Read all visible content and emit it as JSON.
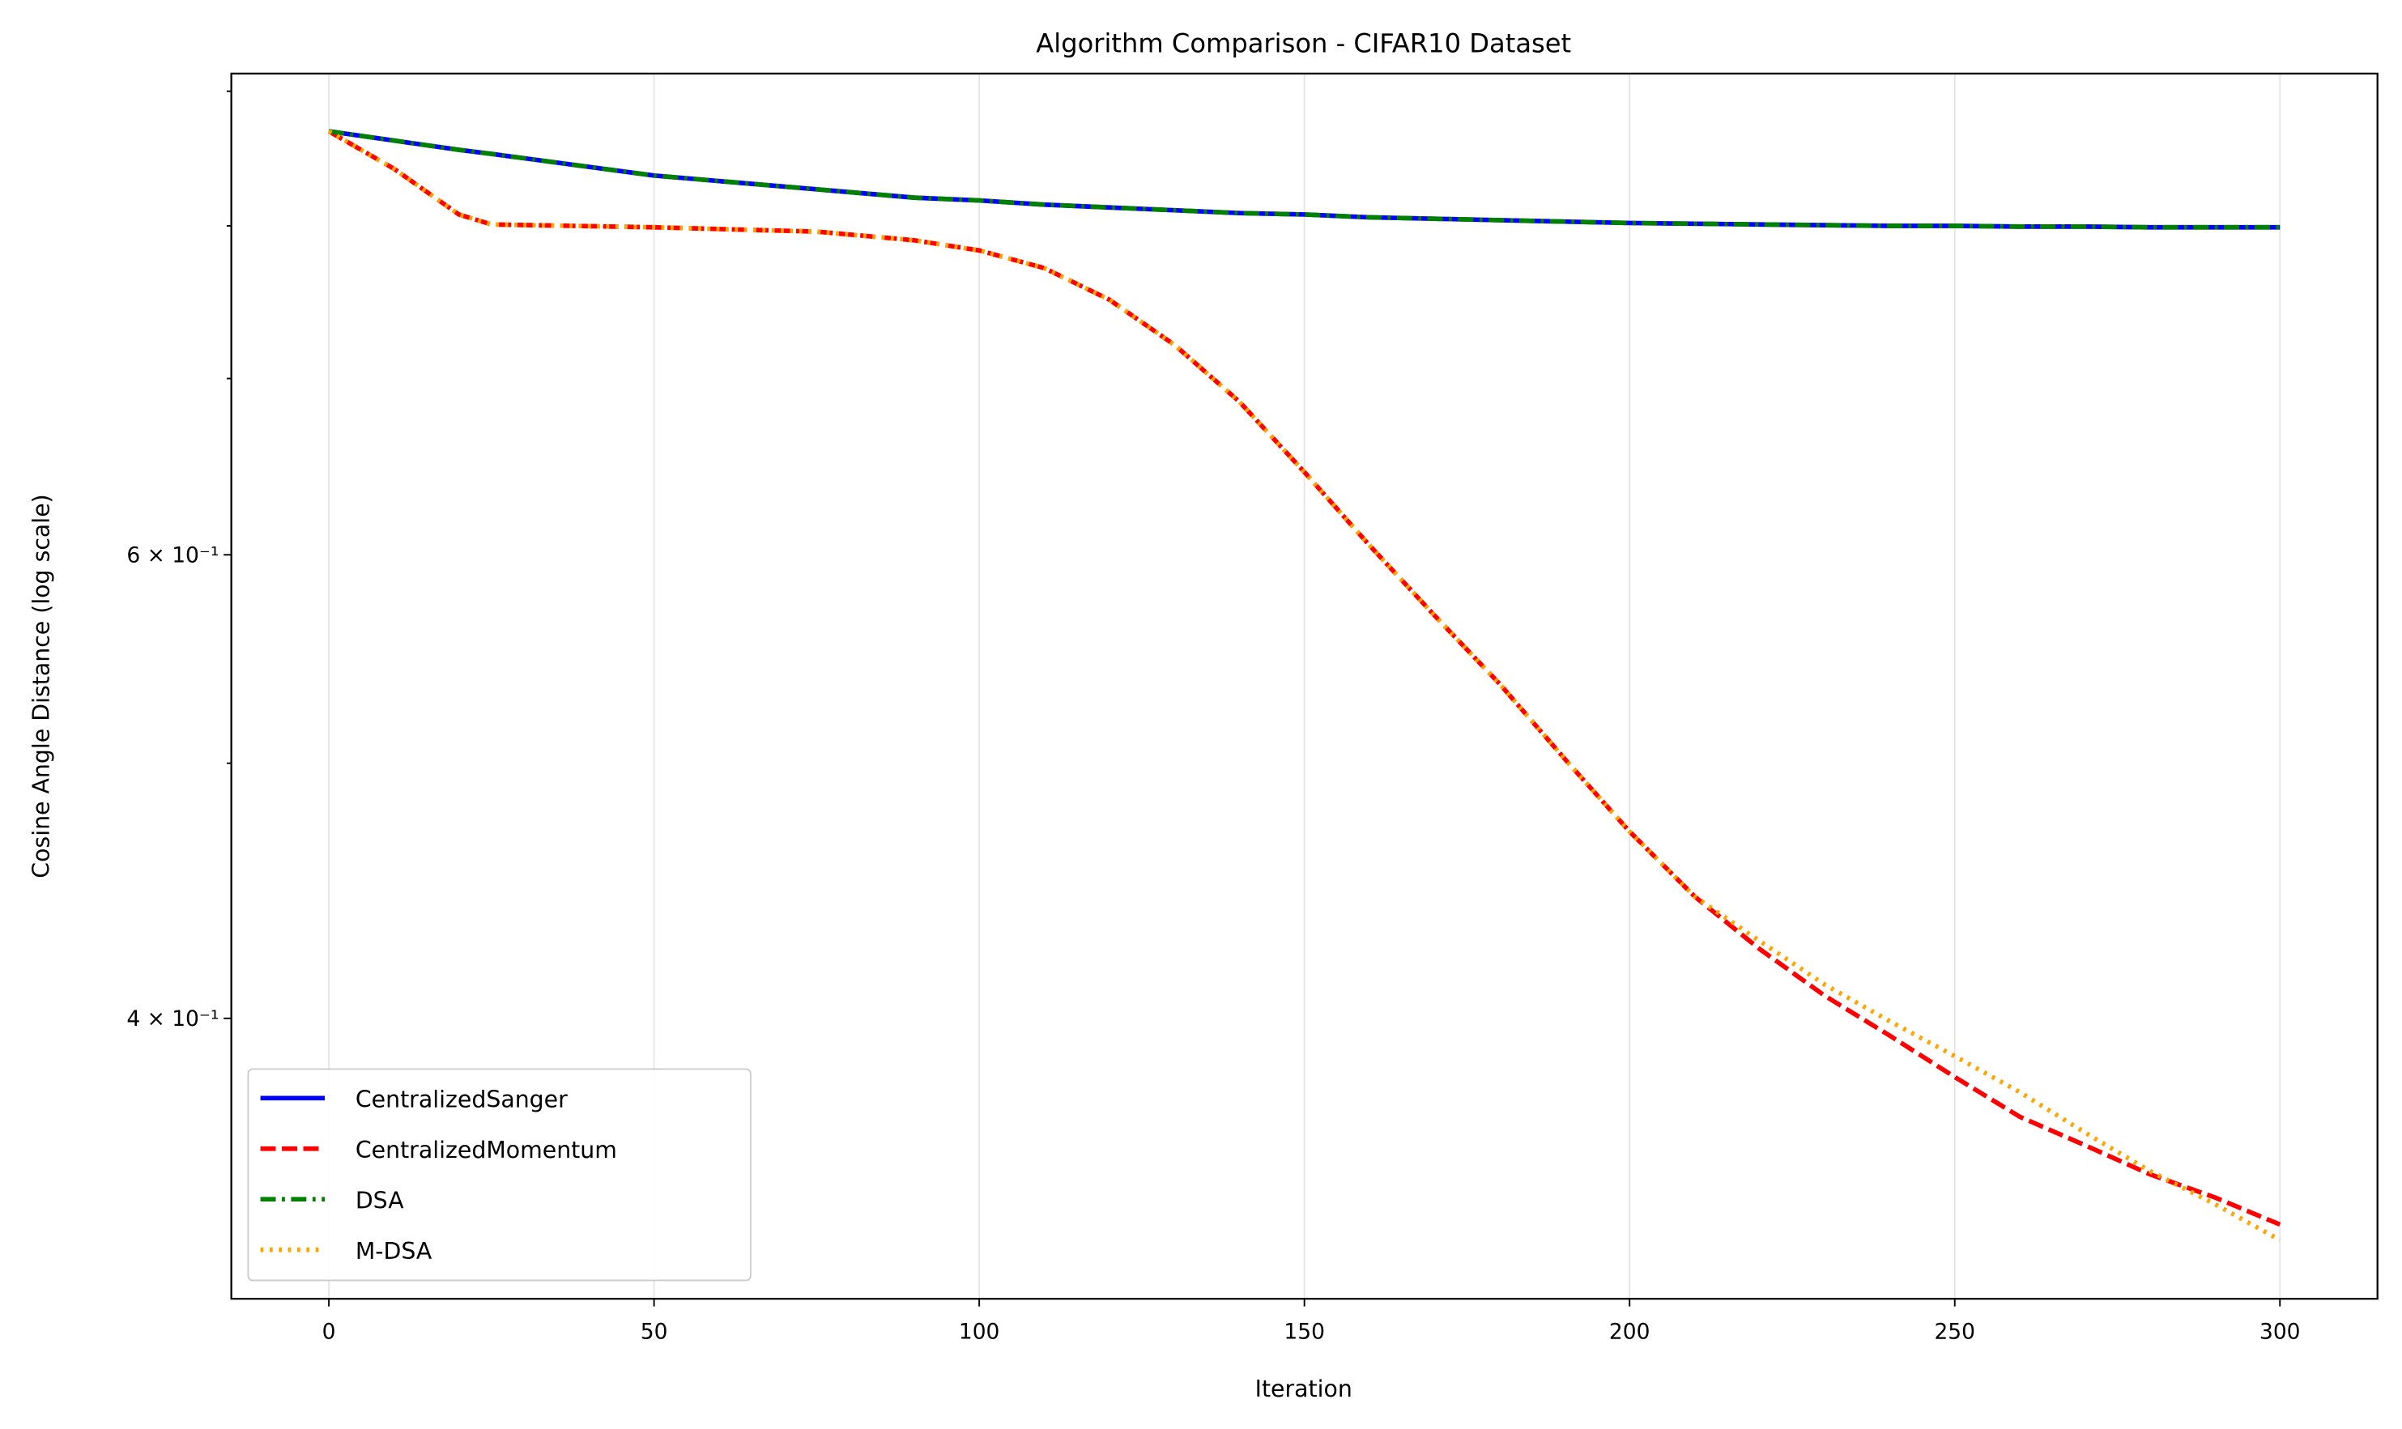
{
  "chart_data": {
    "type": "line",
    "title": "Algorithm Comparison - CIFAR10 Dataset",
    "xlabel": "Iteration",
    "ylabel": "Cosine Angle Distance (log scale)",
    "x": [
      0,
      10,
      20,
      25,
      50,
      75,
      90,
      100,
      110,
      120,
      130,
      140,
      150,
      160,
      170,
      180,
      190,
      200,
      210,
      220,
      230,
      240,
      250,
      260,
      270,
      280,
      290,
      300
    ],
    "series": [
      {
        "name": "CentralizedSanger",
        "color": "#0000ff",
        "dash": "solid",
        "values": [
          0.869,
          0.862,
          0.855,
          0.852,
          0.836,
          0.826,
          0.82,
          0.818,
          0.815,
          0.813,
          0.811,
          0.809,
          0.808,
          0.806,
          0.805,
          0.804,
          0.803,
          0.802,
          0.8015,
          0.801,
          0.8005,
          0.8,
          0.8,
          0.7995,
          0.7995,
          0.799,
          0.799,
          0.799
        ]
      },
      {
        "name": "CentralizedMomentum",
        "color": "#ff0000",
        "dash": "dashed",
        "values": [
          0.869,
          0.841,
          0.808,
          0.801,
          0.799,
          0.796,
          0.79,
          0.783,
          0.771,
          0.75,
          0.721,
          0.686,
          0.645,
          0.605,
          0.569,
          0.536,
          0.502,
          0.471,
          0.445,
          0.425,
          0.408,
          0.394,
          0.38,
          0.367,
          0.358,
          0.349,
          0.342,
          0.334
        ]
      },
      {
        "name": "DSA",
        "color": "#008000",
        "dash": "dashdot",
        "values": [
          0.869,
          0.862,
          0.855,
          0.852,
          0.836,
          0.826,
          0.82,
          0.818,
          0.815,
          0.813,
          0.811,
          0.809,
          0.808,
          0.806,
          0.805,
          0.804,
          0.803,
          0.802,
          0.8015,
          0.801,
          0.8005,
          0.8,
          0.8,
          0.7995,
          0.7995,
          0.799,
          0.799,
          0.799
        ]
      },
      {
        "name": "M-DSA",
        "color": "#ffa500",
        "dash": "dotted",
        "values": [
          0.869,
          0.841,
          0.808,
          0.801,
          0.799,
          0.796,
          0.79,
          0.783,
          0.771,
          0.75,
          0.721,
          0.686,
          0.645,
          0.605,
          0.569,
          0.536,
          0.502,
          0.471,
          0.445,
          0.428,
          0.412,
          0.399,
          0.387,
          0.375,
          0.362,
          0.35,
          0.34,
          0.3295
        ]
      }
    ],
    "xlim": [
      -15,
      315
    ],
    "xticks": [
      0,
      50,
      100,
      150,
      200,
      250,
      300
    ],
    "ylim": [
      0.313,
      0.914
    ],
    "ylog": true,
    "yticks": [
      {
        "value": 0.6,
        "label": "6 × 10⁻¹"
      },
      {
        "value": 0.4,
        "label": "4 × 10⁻¹"
      }
    ],
    "yminorticks": [
      0.5,
      0.7,
      0.8,
      0.9
    ],
    "xgrid": true,
    "legend": "lower left"
  }
}
